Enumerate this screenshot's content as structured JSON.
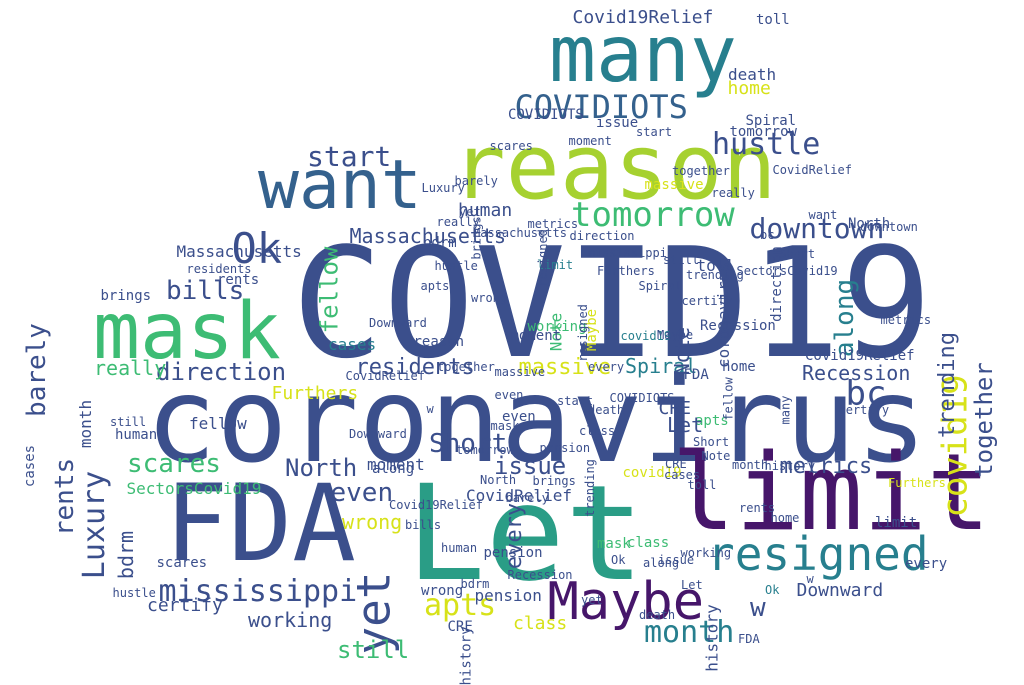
{
  "palette": {
    "navy": "#3b4f8c",
    "dark_purple": "#46166a",
    "teal": "#277f8e",
    "green": "#3dbc74",
    "sea_green": "#2a9d86",
    "lime": "#a6d130",
    "yellow": "#d7e219",
    "blue": "#34618d",
    "background": "#ffffff"
  },
  "words": [
    {
      "text": "COVID19",
      "color": "navy"
    },
    {
      "text": "coronavirus",
      "color": "navy"
    },
    {
      "text": "reason",
      "color": "lime"
    },
    {
      "text": "Let",
      "color": "sea_green"
    },
    {
      "text": "limit",
      "color": "dark_purple"
    },
    {
      "text": "FDA",
      "color": "navy"
    },
    {
      "text": "many",
      "color": "teal"
    },
    {
      "text": "mask",
      "color": "green"
    },
    {
      "text": "want",
      "color": "blue"
    },
    {
      "text": "Maybe",
      "color": "dark_purple"
    },
    {
      "text": "resigned",
      "color": "teal"
    },
    {
      "text": "tomorrow",
      "color": "green"
    },
    {
      "text": "COVIDIOTS",
      "color": "blue"
    },
    {
      "text": "hustle",
      "color": "navy"
    },
    {
      "text": "Ok",
      "color": "navy"
    },
    {
      "text": "yet",
      "color": "navy"
    },
    {
      "text": "downtown",
      "color": "navy"
    },
    {
      "text": "covid19",
      "color": "yellow"
    },
    {
      "text": "mississippi",
      "color": "navy"
    },
    {
      "text": "apts",
      "color": "yellow"
    },
    {
      "text": "bills",
      "color": "navy"
    },
    {
      "text": "Luxury",
      "color": "navy"
    },
    {
      "text": "scares",
      "color": "green"
    },
    {
      "text": "Short",
      "color": "navy"
    },
    {
      "text": "even",
      "color": "navy"
    },
    {
      "text": "bc",
      "color": "navy"
    },
    {
      "text": "start",
      "color": "navy"
    },
    {
      "text": "month",
      "color": "teal"
    },
    {
      "text": "barely",
      "color": "navy"
    },
    {
      "text": "rents",
      "color": "navy"
    },
    {
      "text": "massive",
      "color": "yellow"
    },
    {
      "text": "Massachusetts",
      "color": "navy"
    },
    {
      "text": "issue",
      "color": "navy"
    },
    {
      "text": "metrics",
      "color": "navy"
    },
    {
      "text": "North",
      "color": "navy"
    },
    {
      "text": "together",
      "color": "navy"
    },
    {
      "text": "along",
      "color": "teal"
    },
    {
      "text": "fellow",
      "color": "green"
    },
    {
      "text": "direction",
      "color": "navy"
    },
    {
      "text": "still",
      "color": "green"
    },
    {
      "text": "Covid19Relief",
      "color": "navy"
    },
    {
      "text": "residents",
      "color": "navy"
    },
    {
      "text": "Furthers",
      "color": "yellow"
    },
    {
      "text": "Recession",
      "color": "navy"
    },
    {
      "text": "trending",
      "color": "navy"
    },
    {
      "text": "every",
      "color": "navy"
    },
    {
      "text": "Spiral",
      "color": "teal"
    },
    {
      "text": "bdrm",
      "color": "navy"
    },
    {
      "text": "working",
      "color": "navy"
    },
    {
      "text": "wrong",
      "color": "yellow"
    },
    {
      "text": "certify",
      "color": "navy"
    },
    {
      "text": "Downward",
      "color": "navy"
    },
    {
      "text": "CovidRelief",
      "color": "navy"
    },
    {
      "text": "pension",
      "color": "navy"
    },
    {
      "text": "class",
      "color": "yellow"
    },
    {
      "text": "SectorsCovid19",
      "color": "green"
    },
    {
      "text": "human",
      "color": "navy"
    },
    {
      "text": "really",
      "color": "green"
    },
    {
      "text": "history",
      "color": "navy"
    },
    {
      "text": "home",
      "color": "yellow"
    },
    {
      "text": "death",
      "color": "navy"
    },
    {
      "text": "toll",
      "color": "navy"
    },
    {
      "text": "moment",
      "color": "navy"
    },
    {
      "text": "cases",
      "color": "teal"
    },
    {
      "text": "brings",
      "color": "navy"
    },
    {
      "text": "CRE",
      "color": "navy"
    },
    {
      "text": "Note",
      "color": "navy"
    },
    {
      "text": "w",
      "color": "navy"
    },
    {
      "text": "coronavirus",
      "color": "navy"
    },
    {
      "text": "COVIDIOTS",
      "color": "navy"
    },
    {
      "text": "pension",
      "color": "navy"
    },
    {
      "text": "history",
      "color": "navy"
    },
    {
      "text": "working",
      "color": "green"
    },
    {
      "text": "Note",
      "color": "green"
    },
    {
      "text": "mask",
      "color": "green"
    },
    {
      "text": "apts",
      "color": "green"
    },
    {
      "text": "death",
      "color": "navy"
    },
    {
      "text": "class",
      "color": "green"
    },
    {
      "text": "covid19",
      "color": "yellow"
    },
    {
      "text": "Maybe",
      "color": "yellow"
    },
    {
      "text": "Let",
      "color": "navy"
    },
    {
      "text": "FDA",
      "color": "navy"
    },
    {
      "text": "CRE",
      "color": "navy"
    },
    {
      "text": "resigned",
      "color": "navy"
    },
    {
      "text": "every",
      "color": "navy"
    },
    {
      "text": "month",
      "color": "navy"
    },
    {
      "text": "Massachusetts",
      "color": "navy"
    },
    {
      "text": "metrics",
      "color": "navy"
    },
    {
      "text": "cases",
      "color": "navy"
    },
    {
      "text": "rents",
      "color": "navy"
    },
    {
      "text": "Covid19Relief",
      "color": "navy"
    },
    {
      "text": "trending",
      "color": "navy"
    },
    {
      "text": "issue",
      "color": "navy"
    },
    {
      "text": "toll",
      "color": "navy"
    },
    {
      "text": "tomorrow",
      "color": "navy"
    },
    {
      "text": "Recession",
      "color": "navy"
    },
    {
      "text": "fellow",
      "color": "navy"
    },
    {
      "text": "scares",
      "color": "navy"
    },
    {
      "text": "direction",
      "color": "navy"
    },
    {
      "text": "Short",
      "color": "navy"
    },
    {
      "text": "along",
      "color": "navy"
    },
    {
      "text": "limit",
      "color": "navy"
    },
    {
      "text": "moment",
      "color": "navy"
    },
    {
      "text": "massive",
      "color": "yellow"
    },
    {
      "text": "brings",
      "color": "navy"
    },
    {
      "text": "bdrm",
      "color": "navy"
    },
    {
      "text": "human",
      "color": "navy"
    },
    {
      "text": "still",
      "color": "navy"
    },
    {
      "text": "even",
      "color": "navy"
    },
    {
      "text": "reason",
      "color": "navy"
    },
    {
      "text": "North",
      "color": "navy"
    },
    {
      "text": "wrong",
      "color": "navy"
    },
    {
      "text": "home",
      "color": "navy"
    },
    {
      "text": "Spiral",
      "color": "navy"
    },
    {
      "text": "hustle",
      "color": "navy"
    },
    {
      "text": "certify",
      "color": "navy"
    },
    {
      "text": "Downward",
      "color": "navy"
    },
    {
      "text": "yet",
      "color": "navy"
    },
    {
      "text": "start",
      "color": "navy"
    },
    {
      "text": "barely",
      "color": "navy"
    },
    {
      "text": "together",
      "color": "navy"
    },
    {
      "text": "really",
      "color": "navy"
    },
    {
      "text": "residents",
      "color": "navy"
    },
    {
      "text": "bills",
      "color": "navy"
    },
    {
      "text": "Luxury",
      "color": "navy"
    },
    {
      "text": "mississippi",
      "color": "navy"
    },
    {
      "text": "CovidRelief",
      "color": "navy"
    },
    {
      "text": "SectorsCovid19",
      "color": "navy"
    },
    {
      "text": "bc",
      "color": "navy"
    },
    {
      "text": "Ok",
      "color": "navy"
    },
    {
      "text": "many",
      "color": "navy"
    },
    {
      "text": "want",
      "color": "navy"
    },
    {
      "text": "Furthers",
      "color": "yellow"
    },
    {
      "text": "downtown",
      "color": "navy"
    },
    {
      "text": "w",
      "color": "navy"
    },
    {
      "text": "Ok",
      "color": "teal"
    },
    {
      "text": "CRE",
      "color": "navy"
    },
    {
      "text": "FDA",
      "color": "navy"
    },
    {
      "text": "month",
      "color": "navy"
    },
    {
      "text": "limit",
      "color": "teal"
    },
    {
      "text": "along",
      "color": "navy"
    },
    {
      "text": "mask",
      "color": "navy"
    },
    {
      "text": "Spiral",
      "color": "navy"
    },
    {
      "text": "Let",
      "color": "navy"
    },
    {
      "text": "resigned",
      "color": "navy"
    },
    {
      "text": "Massachusetts",
      "color": "navy"
    },
    {
      "text": "Short",
      "color": "navy"
    },
    {
      "text": "class",
      "color": "navy"
    },
    {
      "text": "Note",
      "color": "navy"
    },
    {
      "text": "fellow",
      "color": "navy"
    },
    {
      "text": "every",
      "color": "navy"
    },
    {
      "text": "issue",
      "color": "navy"
    },
    {
      "text": "history",
      "color": "navy"
    },
    {
      "text": "home",
      "color": "navy"
    },
    {
      "text": "rents",
      "color": "navy"
    },
    {
      "text": "toll",
      "color": "navy"
    },
    {
      "text": "cases",
      "color": "navy"
    },
    {
      "text": "working",
      "color": "navy"
    },
    {
      "text": "trending",
      "color": "navy"
    },
    {
      "text": "death",
      "color": "navy"
    },
    {
      "text": "COVIDIOTS",
      "color": "navy"
    },
    {
      "text": "covid19",
      "color": "teal"
    },
    {
      "text": "Maybe",
      "color": "navy"
    },
    {
      "text": "certify",
      "color": "navy"
    },
    {
      "text": "pension",
      "color": "navy"
    },
    {
      "text": "brings",
      "color": "navy"
    },
    {
      "text": "tomorrow",
      "color": "navy"
    },
    {
      "text": "Recession",
      "color": "navy"
    },
    {
      "text": "yet",
      "color": "navy"
    },
    {
      "text": "bdrm",
      "color": "navy"
    },
    {
      "text": "human",
      "color": "navy"
    },
    {
      "text": "Covid19Relief",
      "color": "navy"
    },
    {
      "text": "North",
      "color": "navy"
    },
    {
      "text": "even",
      "color": "navy"
    },
    {
      "text": "massive",
      "color": "navy"
    },
    {
      "text": "metrics",
      "color": "navy"
    },
    {
      "text": "direction",
      "color": "navy"
    },
    {
      "text": "Furthers",
      "color": "navy"
    },
    {
      "text": "still",
      "color": "navy"
    },
    {
      "text": "really",
      "color": "navy"
    },
    {
      "text": "together",
      "color": "navy"
    },
    {
      "text": "moment",
      "color": "navy"
    },
    {
      "text": "start",
      "color": "navy"
    },
    {
      "text": "scares",
      "color": "navy"
    },
    {
      "text": "barely",
      "color": "navy"
    },
    {
      "text": "hustle",
      "color": "navy"
    },
    {
      "text": "wrong",
      "color": "navy"
    },
    {
      "text": "apts",
      "color": "navy"
    },
    {
      "text": "Downward",
      "color": "navy"
    },
    {
      "text": "CovidRelief",
      "color": "navy"
    },
    {
      "text": "w",
      "color": "navy"
    }
  ]
}
